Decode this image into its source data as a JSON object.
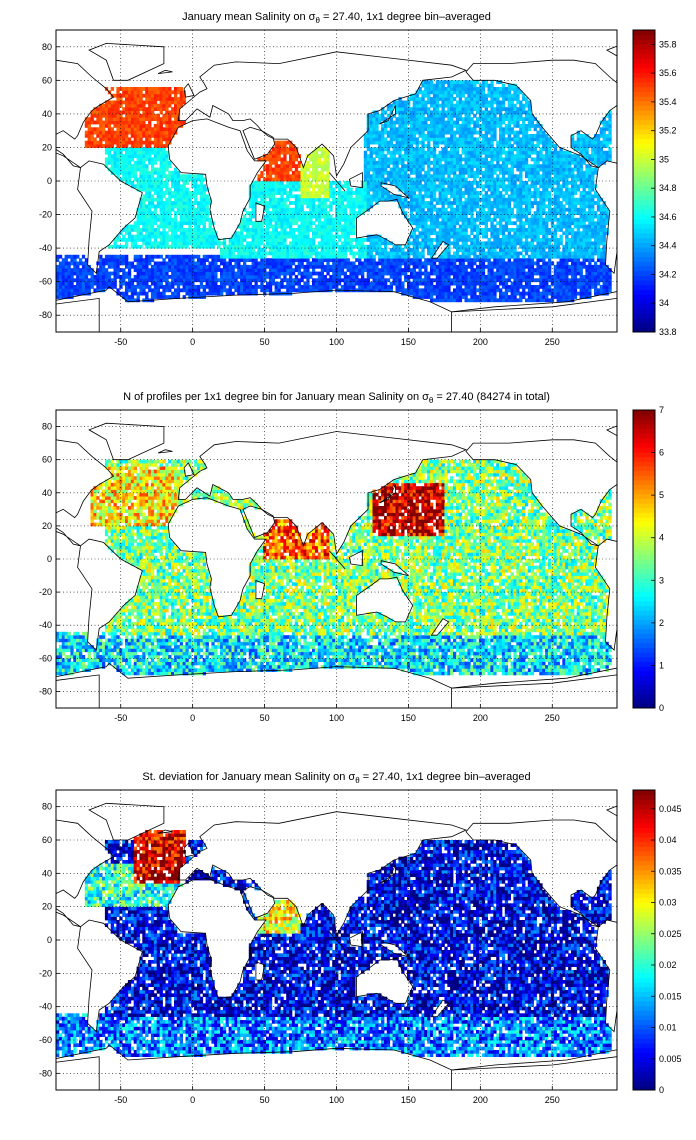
{
  "chart_data": [
    {
      "type": "heatmap",
      "title": "January mean Salinity on σθ = 27.40, 1x1 degree bin–averaged",
      "title_parts": [
        "January mean Salinity on σ",
        "θ",
        " = 27.40, 1x1 degree bin–averaged"
      ],
      "xticks": [
        "-50",
        "0",
        "50",
        "100",
        "150",
        "200",
        "250"
      ],
      "xtick_values": [
        -50,
        0,
        50,
        100,
        150,
        200,
        250
      ],
      "yticks": [
        "80",
        "60",
        "40",
        "20",
        "0",
        "-20",
        "-40",
        "-60",
        "-80"
      ],
      "ytick_values": [
        80,
        60,
        40,
        20,
        0,
        -20,
        -40,
        -60,
        -80
      ],
      "xlim": [
        -95,
        295
      ],
      "ylim": [
        -90,
        90
      ],
      "grid": true,
      "colorbar": {
        "ticks": [
          "35.8",
          "35.6",
          "35.4",
          "35.2",
          "35",
          "34.8",
          "34.6",
          "34.4",
          "34.2",
          "34",
          "33.8"
        ],
        "tick_values": [
          35.8,
          35.6,
          35.4,
          35.2,
          35.0,
          34.8,
          34.6,
          34.4,
          34.2,
          34.0,
          33.8
        ],
        "range": [
          33.8,
          35.9
        ],
        "colormap": "jet"
      },
      "regions": [
        {
          "lon": [
            -75,
            -5
          ],
          "lat": [
            20,
            55
          ],
          "value": 35.5
        },
        {
          "lon": [
            -30,
            -5
          ],
          "lat": [
            30,
            45
          ],
          "value": 35.8
        },
        {
          "lon": [
            45,
            75
          ],
          "lat": [
            0,
            28
          ],
          "value": 35.5
        },
        {
          "lon": [
            75,
            95
          ],
          "lat": [
            -10,
            20
          ],
          "value": 35.0
        },
        {
          "lon": [
            -60,
            20
          ],
          "lat": [
            -40,
            20
          ],
          "value": 34.6
        },
        {
          "lon": [
            20,
            120
          ],
          "lat": [
            -45,
            0
          ],
          "value": 34.6
        },
        {
          "lon": [
            120,
            290
          ],
          "lat": [
            -45,
            60
          ],
          "value": 34.45
        },
        {
          "lon": [
            -95,
            290
          ],
          "lat": [
            -72,
            -45
          ],
          "value": 34.2
        }
      ]
    },
    {
      "type": "heatmap",
      "title": "N of profiles per 1x1 degree bin for January mean Salinity on σθ = 27.40 (84274 in total)",
      "title_parts": [
        "N of profiles per 1x1 degree bin for January mean Salinity on σ",
        "θ",
        " = 27.40 (84274 in total)"
      ],
      "xticks": [
        "-50",
        "0",
        "50",
        "100",
        "150",
        "200",
        "250"
      ],
      "xtick_values": [
        -50,
        0,
        50,
        100,
        150,
        200,
        250
      ],
      "yticks": [
        "80",
        "60",
        "40",
        "20",
        "0",
        "-20",
        "-40",
        "-60",
        "-80"
      ],
      "ytick_values": [
        80,
        60,
        40,
        20,
        0,
        -20,
        -40,
        -60,
        -80
      ],
      "xlim": [
        -95,
        295
      ],
      "ylim": [
        -90,
        90
      ],
      "grid": true,
      "colorbar": {
        "ticks": [
          "7",
          "6",
          "5",
          "4",
          "3",
          "2",
          "1",
          "0"
        ],
        "tick_values": [
          7,
          6,
          5,
          4,
          3,
          2,
          1,
          0
        ],
        "range": [
          0,
          7
        ],
        "colormap": "jet"
      },
      "total_profiles": 84274,
      "regions": [
        {
          "lon": [
            125,
            175
          ],
          "lat": [
            15,
            45
          ],
          "value": 6.5
        },
        {
          "lon": [
            -70,
            -10
          ],
          "lat": [
            20,
            55
          ],
          "value": 4.5
        },
        {
          "lon": [
            50,
            95
          ],
          "lat": [
            0,
            28
          ],
          "value": 5.5
        },
        {
          "lon": [
            -60,
            290
          ],
          "lat": [
            -45,
            60
          ],
          "value": 3.5
        },
        {
          "lon": [
            -95,
            290
          ],
          "lat": [
            -70,
            -45
          ],
          "value": 2.5
        }
      ]
    },
    {
      "type": "heatmap",
      "title": "St. deviation for January mean Salinity on σθ = 27.40, 1x1 degree bin–averaged",
      "title_parts": [
        "St. deviation for January mean Salinity on σ",
        "θ",
        " = 27.40, 1x1 degree bin–averaged"
      ],
      "xticks": [
        "-50",
        "0",
        "50",
        "100",
        "150",
        "200",
        "250"
      ],
      "xtick_values": [
        -50,
        0,
        50,
        100,
        150,
        200,
        250
      ],
      "yticks": [
        "80",
        "60",
        "40",
        "20",
        "0",
        "-20",
        "-40",
        "-60",
        "-80"
      ],
      "ytick_values": [
        80,
        60,
        40,
        20,
        0,
        -20,
        -40,
        -60,
        -80
      ],
      "xlim": [
        -95,
        295
      ],
      "ylim": [
        -90,
        90
      ],
      "grid": true,
      "colorbar": {
        "ticks": [
          "0.045",
          "0.04",
          "0.035",
          "0.03",
          "0.025",
          "0.02",
          "0.015",
          "0.01",
          "0.005",
          "0"
        ],
        "tick_values": [
          0.045,
          0.04,
          0.035,
          0.03,
          0.025,
          0.02,
          0.015,
          0.01,
          0.005,
          0
        ],
        "range": [
          0,
          0.048
        ],
        "colormap": "jet"
      },
      "regions": [
        {
          "lon": [
            -40,
            -5
          ],
          "lat": [
            35,
            65
          ],
          "value": 0.044
        },
        {
          "lon": [
            -75,
            -5
          ],
          "lat": [
            20,
            45
          ],
          "value": 0.02
        },
        {
          "lon": [
            45,
            75
          ],
          "lat": [
            5,
            28
          ],
          "value": 0.03
        },
        {
          "lon": [
            -60,
            290
          ],
          "lat": [
            -45,
            60
          ],
          "value": 0.005
        },
        {
          "lon": [
            -95,
            290
          ],
          "lat": [
            -70,
            -45
          ],
          "value": 0.012
        }
      ]
    }
  ]
}
